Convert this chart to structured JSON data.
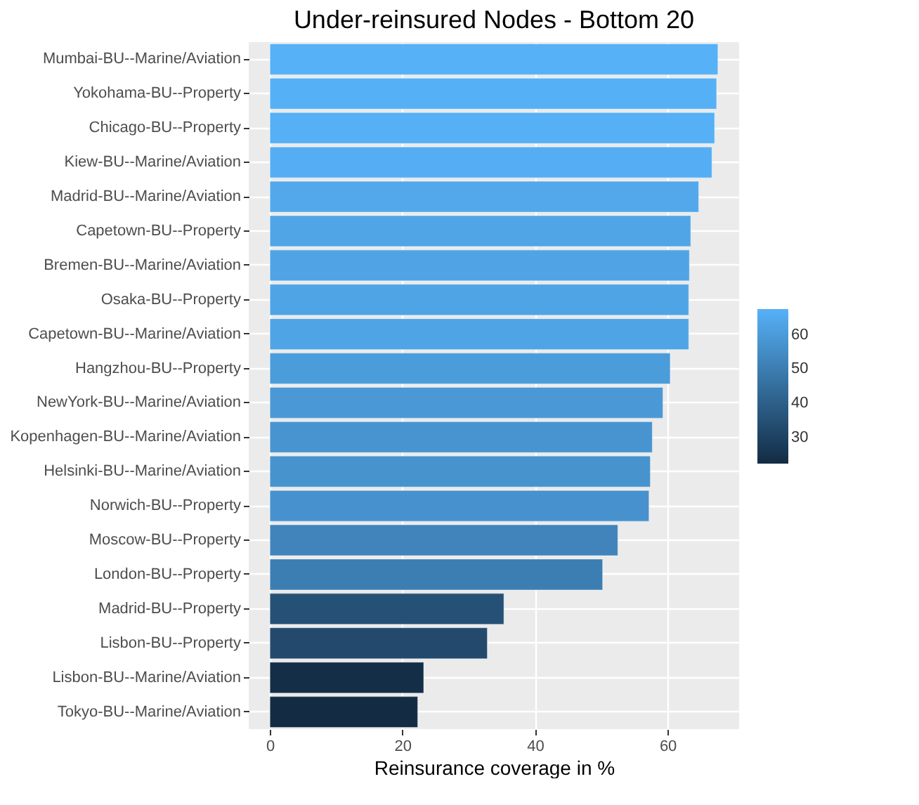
{
  "chart_data": {
    "type": "bar",
    "orientation": "horizontal",
    "title": "Under-reinsured Nodes - Bottom 20",
    "xlabel": "Reinsurance coverage in %",
    "categories": [
      "Mumbai-BU--Marine/Aviation",
      "Yokohama-BU--Property",
      "Chicago-BU--Property",
      "Kiew-BU--Marine/Aviation",
      "Madrid-BU--Marine/Aviation",
      "Capetown-BU--Property",
      "Bremen-BU--Marine/Aviation",
      "Osaka-BU--Property",
      "Capetown-BU--Marine/Aviation",
      "Hangzhou-BU--Property",
      "NewYork-BU--Marine/Aviation",
      "Kopenhagen-BU--Marine/Aviation",
      "Helsinki-BU--Marine/Aviation",
      "Norwich-BU--Property",
      "Moscow-BU--Property",
      "London-BU--Property",
      "Madrid-BU--Property",
      "Lisbon-BU--Property",
      "Lisbon-BU--Marine/Aviation",
      "Tokyo-BU--Marine/Aviation"
    ],
    "values": [
      67.6,
      67.4,
      67.1,
      66.7,
      64.7,
      63.5,
      63.3,
      63.2,
      63.2,
      60.4,
      59.3,
      57.7,
      57.4,
      57.2,
      52.5,
      50.2,
      35.3,
      32.8,
      23.2,
      22.3
    ],
    "cvalues": [
      67.6,
      67.4,
      67.1,
      66.7,
      64.7,
      63.5,
      63.3,
      63.2,
      63.2,
      60.4,
      59.3,
      57.7,
      57.4,
      57.2,
      52.5,
      50.2,
      35.3,
      32.8,
      23.2,
      22.3
    ],
    "clim": [
      22.3,
      67.6
    ],
    "cticks": [
      30,
      40,
      50,
      60
    ],
    "xlim": [
      -3.2,
      70.8
    ],
    "xticks": [
      0,
      20,
      40,
      60
    ],
    "grid": true
  }
}
